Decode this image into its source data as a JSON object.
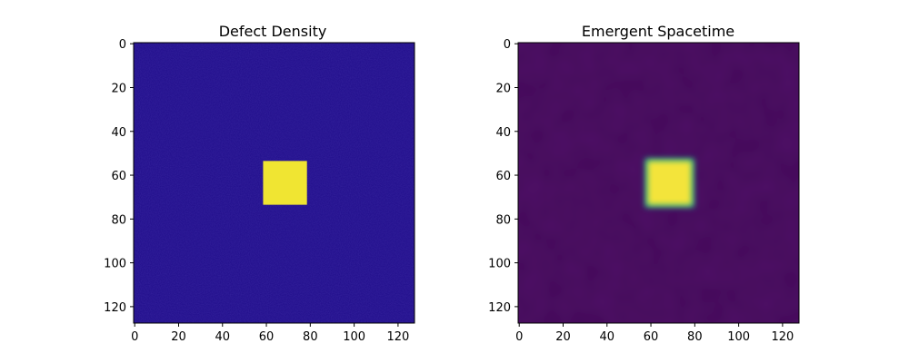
{
  "chart_data": [
    {
      "type": "heatmap",
      "title": "Defect Density",
      "grid_size": [
        128,
        128
      ],
      "xlim": [
        0,
        128
      ],
      "ylim": [
        128,
        0
      ],
      "y_axis_inverted": true,
      "x_ticks": [
        0,
        20,
        40,
        60,
        80,
        100,
        120
      ],
      "y_ticks": [
        0,
        20,
        40,
        60,
        80,
        100,
        120
      ],
      "colormap": "plasma",
      "background_value": "low (noisy)",
      "background_color": "#1f0c8a",
      "features": [
        {
          "shape": "square",
          "x_range": [
            59,
            79
          ],
          "y_range": [
            54,
            74
          ],
          "color": "#f0e532",
          "edge": "sharp"
        }
      ],
      "grid": false,
      "legend": "none"
    },
    {
      "type": "heatmap",
      "title": "Emergent Spacetime",
      "grid_size": [
        128,
        128
      ],
      "xlim": [
        0,
        128
      ],
      "ylim": [
        128,
        0
      ],
      "y_axis_inverted": true,
      "x_ticks": [
        0,
        20,
        40,
        60,
        80,
        100,
        120
      ],
      "y_ticks": [
        0,
        20,
        40,
        60,
        80,
        100,
        120
      ],
      "colormap": "viridis",
      "background_value": "low (smooth)",
      "background_color": "#440a5a",
      "features": [
        {
          "shape": "square",
          "x_range": [
            59,
            79
          ],
          "y_range": [
            54,
            74
          ],
          "color": "#f3e43a",
          "edge": "blurred"
        }
      ],
      "grid": false,
      "legend": "none"
    }
  ]
}
